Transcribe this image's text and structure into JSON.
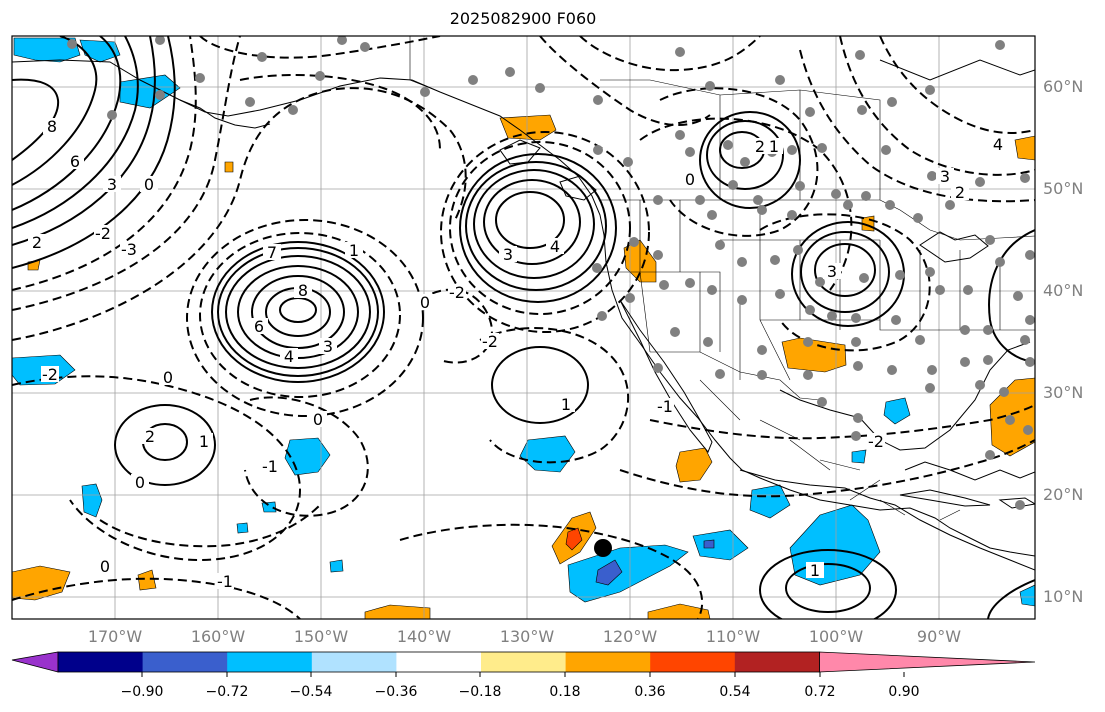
{
  "map": {
    "title": "2025082900 F060",
    "lat_labels": [
      "60°N",
      "50°N",
      "40°N",
      "30°N",
      "20°N",
      "10°N"
    ],
    "lon_labels": [
      "170°W",
      "160°W",
      "150°W",
      "140°W",
      "130°W",
      "120°W",
      "110°W",
      "100°W",
      "90°W"
    ],
    "contour_labels": {
      "positive": [
        "8",
        "6",
        "3",
        "2",
        "8",
        "7",
        "6",
        "4",
        "3",
        "1",
        "3",
        "4",
        "2",
        "1",
        "1",
        "3",
        "2",
        "1",
        "4",
        "3",
        "2",
        "1"
      ],
      "negative": [
        "0",
        "-2",
        "-3",
        "0",
        "-2",
        "0",
        "-1",
        "0",
        "-2",
        "0",
        "-2",
        "0",
        "-1",
        "0",
        "-1",
        "-2"
      ]
    },
    "marker": "storm-center",
    "colors": {
      "contour": "#000000",
      "station_dot": "#808080",
      "grid": "#a0a0a0",
      "label": "#808080"
    }
  },
  "colorbar": {
    "ticks": [
      "−0.90",
      "−0.72",
      "−0.54",
      "−0.36",
      "−0.18",
      "0.18",
      "0.36",
      "0.54",
      "0.72",
      "0.90"
    ],
    "colors": [
      "#9932cc",
      "#00008b",
      "#3a5fcd",
      "#00bfff",
      "#b0e2ff",
      "#ffffff",
      "#ffec8b",
      "#ffa500",
      "#ff4500",
      "#b22222",
      "#ff88aa"
    ]
  }
}
